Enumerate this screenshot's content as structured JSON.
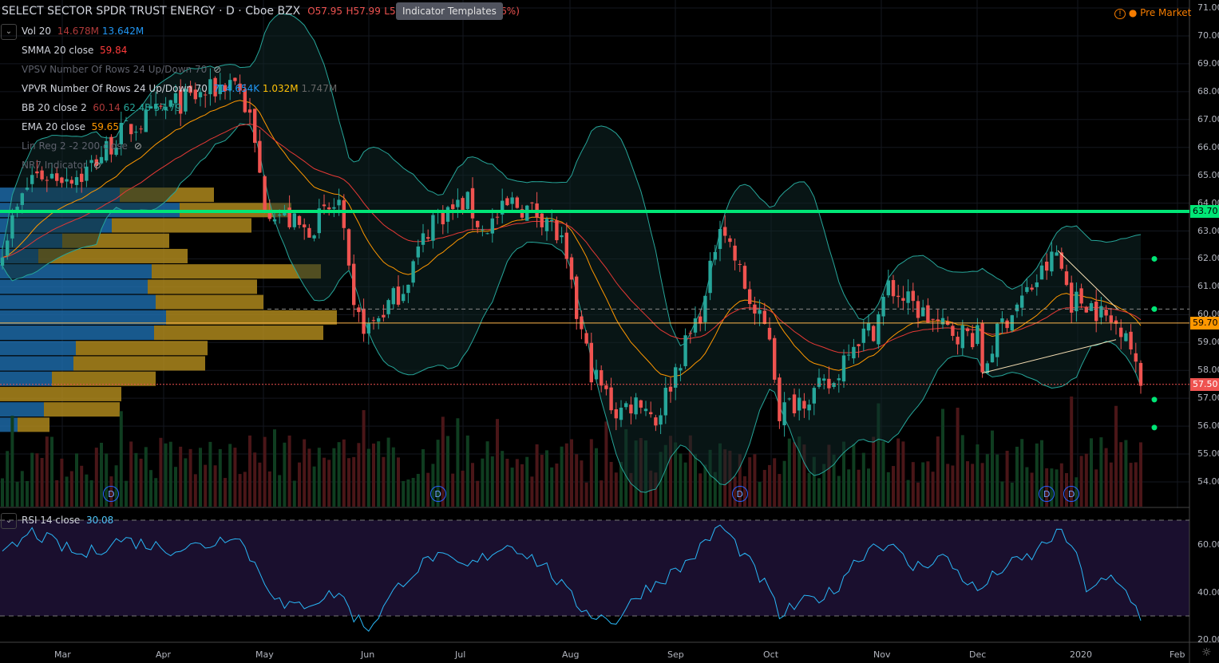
{
  "header": {
    "symbol": "SELECT SECTOR SPDR TRUST ENERGY · D · Cboe BZX",
    "open": "O57.95",
    "high": "H57.99",
    "low": "L57",
    "change_tail": ".96%)",
    "tooltip": "Indicator Templates",
    "premarket": "Pre Market",
    "premarket_dot": "●"
  },
  "indicators": [
    {
      "name": "Vol 20",
      "v1": "14.678M",
      "v2": "13.642M"
    },
    {
      "name": "SMMA 20 close",
      "v1": "59.84"
    },
    {
      "name": "VPSV Number Of Rows 24 Up/Down 70"
    },
    {
      "name": "VPVR Number Of Rows 24 Up/Down 70",
      "v1": "714.654K",
      "v2": "1.032M",
      "v3": "1.747M"
    },
    {
      "name": "BB 20 close 2",
      "v1": "60.14",
      "v2": "62.48",
      "v3": "57.79"
    },
    {
      "name": "EMA 20 close",
      "v1": "59.65"
    },
    {
      "name": "Lin Reg 2 -2 200 close"
    },
    {
      "name": "NR7 Indicator"
    }
  ],
  "rsi": {
    "label": "RSI 14 close",
    "value": "30.08",
    "axis": [
      "60.00",
      "40.00",
      "20.00"
    ],
    "upper": 70,
    "lower": 30
  },
  "price_axis": [
    "71.00",
    "70.00",
    "69.00",
    "68.00",
    "67.00",
    "66.00",
    "65.00",
    "64.00",
    "63.00",
    "62.00",
    "61.00",
    "60.00",
    "59.00",
    "58.00",
    "57.00",
    "56.00",
    "55.00",
    "54.00"
  ],
  "price_tags": {
    "green": "63.70",
    "orange": "59.70",
    "last": "57.50"
  },
  "time_axis": [
    "Mar",
    "Apr",
    "May",
    "Jun",
    "Jul",
    "Aug",
    "Sep",
    "Oct",
    "Nov",
    "Dec",
    "2020",
    "Feb"
  ],
  "dividend_label": "D",
  "colors": {
    "up": "#26a69a",
    "down": "#ef5350",
    "green_line": "#00e676",
    "orange": "#ff9800",
    "bb": "#26a69a",
    "ema": "#ff9800",
    "smma": "#e53935",
    "vp_up": "#1e6fb0",
    "vp_down": "#b8901e"
  },
  "chart_data": {
    "type": "candlestick",
    "price_range": [
      53.4,
      71.2
    ],
    "bars": 231,
    "close_anchors": [
      [
        0,
        62.5
      ],
      [
        6,
        65
      ],
      [
        16,
        65
      ],
      [
        24,
        66.5
      ],
      [
        34,
        67.5
      ],
      [
        42,
        68
      ],
      [
        47,
        68.5
      ],
      [
        50,
        67
      ],
      [
        53,
        64
      ],
      [
        61,
        63
      ],
      [
        68,
        64
      ],
      [
        71,
        60
      ],
      [
        74,
        59.5
      ],
      [
        81,
        61
      ],
      [
        87,
        63.5
      ],
      [
        94,
        64
      ],
      [
        97,
        63
      ],
      [
        103,
        64
      ],
      [
        110,
        63.5
      ],
      [
        113,
        62.5
      ],
      [
        116,
        60
      ],
      [
        119,
        58
      ],
      [
        124,
        56.5
      ],
      [
        129,
        57
      ],
      [
        132,
        56.2
      ],
      [
        137,
        58.5
      ],
      [
        142,
        60.5
      ],
      [
        145,
        63.5
      ],
      [
        148,
        62
      ],
      [
        152,
        60
      ],
      [
        155,
        59.3
      ],
      [
        157,
        56.5
      ],
      [
        161,
        57
      ],
      [
        168,
        57.5
      ],
      [
        171,
        59
      ],
      [
        176,
        59.5
      ],
      [
        179,
        61
      ],
      [
        184,
        60.3
      ],
      [
        190,
        59.5
      ],
      [
        197,
        59.2
      ],
      [
        198,
        58
      ],
      [
        202,
        59.7
      ],
      [
        208,
        61
      ],
      [
        213,
        62.2
      ],
      [
        216,
        60.5
      ],
      [
        219,
        60.5
      ],
      [
        224,
        59.7
      ],
      [
        227,
        59.6
      ],
      [
        229,
        58
      ],
      [
        230,
        57.5
      ]
    ],
    "rsi_anchors": [
      [
        0,
        55
      ],
      [
        6,
        65
      ],
      [
        16,
        55
      ],
      [
        24,
        62
      ],
      [
        34,
        58
      ],
      [
        42,
        60
      ],
      [
        47,
        65
      ],
      [
        53,
        45
      ],
      [
        57,
        33
      ],
      [
        61,
        35
      ],
      [
        68,
        40
      ],
      [
        71,
        30
      ],
      [
        74,
        25
      ],
      [
        81,
        45
      ],
      [
        87,
        55
      ],
      [
        94,
        50
      ],
      [
        100,
        58
      ],
      [
        103,
        60
      ],
      [
        110,
        50
      ],
      [
        116,
        35
      ],
      [
        120,
        30
      ],
      [
        124,
        28
      ],
      [
        129,
        40
      ],
      [
        137,
        50
      ],
      [
        142,
        60
      ],
      [
        145,
        68
      ],
      [
        150,
        55
      ],
      [
        155,
        40
      ],
      [
        157,
        30
      ],
      [
        161,
        35
      ],
      [
        168,
        40
      ],
      [
        171,
        50
      ],
      [
        176,
        60
      ],
      [
        179,
        60
      ],
      [
        184,
        50
      ],
      [
        190,
        55
      ],
      [
        197,
        40
      ],
      [
        202,
        50
      ],
      [
        208,
        55
      ],
      [
        213,
        65
      ],
      [
        216,
        60
      ],
      [
        219,
        42
      ],
      [
        224,
        45
      ],
      [
        227,
        40
      ],
      [
        230,
        30
      ]
    ],
    "hlines": {
      "green": 63.7,
      "orange": 59.7,
      "last": 57.5,
      "dashed": 60.2
    },
    "nr7_dots": [
      62.0,
      60.2,
      56.95,
      55.95
    ],
    "dividend_bars": [
      22,
      88,
      149,
      211,
      216
    ],
    "volume_profile": [
      {
        "price": 64.3,
        "up": 150,
        "down": 118
      },
      {
        "price": 63.75,
        "up": 225,
        "down": 140
      },
      {
        "price": 63.2,
        "up": 140,
        "down": 175
      },
      {
        "price": 62.65,
        "up": 78,
        "down": 134
      },
      {
        "price": 62.1,
        "up": 48,
        "down": 187
      },
      {
        "price": 61.55,
        "up": 190,
        "down": 212
      },
      {
        "price": 61.0,
        "up": 185,
        "down": 137
      },
      {
        "price": 60.45,
        "up": 195,
        "down": 135
      },
      {
        "price": 59.9,
        "up": 208,
        "down": 214
      },
      {
        "price": 59.35,
        "up": 193,
        "down": 212
      },
      {
        "price": 58.8,
        "up": 95,
        "down": 165
      },
      {
        "price": 58.25,
        "up": 92,
        "down": 165
      },
      {
        "price": 57.7,
        "up": 65,
        "down": 130
      },
      {
        "price": 57.15,
        "up": 0,
        "down": 152
      },
      {
        "price": 56.6,
        "up": 55,
        "down": 95
      },
      {
        "price": 56.05,
        "up": 22,
        "down": 40
      }
    ]
  }
}
